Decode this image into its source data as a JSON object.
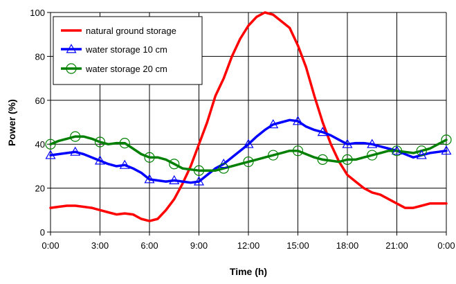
{
  "chart_data": {
    "type": "line",
    "title": "",
    "xlabel": "Time (h)",
    "ylabel": "Power (%)",
    "xlim": [
      0,
      24
    ],
    "ylim": [
      0,
      100
    ],
    "grid": true,
    "legend_position": "top-left",
    "x_tick_values": [
      0,
      3,
      6,
      9,
      12,
      15,
      18,
      21,
      24
    ],
    "x_tick_labels": [
      "0:00",
      "3:00",
      "6:00",
      "9:00",
      "12:00",
      "15:00",
      "18:00",
      "21:00",
      "0:00"
    ],
    "y_tick_values": [
      0,
      20,
      40,
      60,
      80,
      100
    ],
    "y_tick_labels": [
      "0",
      "20",
      "40",
      "60",
      "80",
      "100"
    ],
    "series": [
      {
        "name": "natural ground storage",
        "color": "#ff0000",
        "marker": "none",
        "x": [
          0,
          0.5,
          1,
          1.5,
          2,
          2.5,
          3,
          3.5,
          4,
          4.5,
          5,
          5.5,
          6,
          6.5,
          7,
          7.5,
          8,
          8.5,
          9,
          9.5,
          10,
          10.5,
          11,
          11.5,
          12,
          12.5,
          13,
          13.5,
          14,
          14.5,
          15,
          15.5,
          16,
          16.5,
          17,
          17.5,
          18,
          18.5,
          19,
          19.5,
          20,
          20.5,
          21,
          21.5,
          22,
          22.5,
          23,
          23.5,
          24
        ],
        "y": [
          11,
          11.5,
          12,
          12,
          11.5,
          11,
          10,
          9,
          8,
          8.5,
          8,
          6,
          5,
          6,
          10,
          15,
          22,
          30,
          40,
          50,
          62,
          70,
          80,
          88,
          94,
          98,
          100,
          99,
          96,
          93,
          85,
          75,
          62,
          50,
          40,
          32,
          26,
          23,
          20,
          18,
          17,
          15,
          13,
          11,
          11,
          12,
          13,
          13,
          13
        ]
      },
      {
        "name": "water storage 10 cm",
        "color": "#0000ff",
        "marker": "triangle",
        "x": [
          0,
          0.5,
          1,
          1.5,
          2,
          2.5,
          3,
          3.5,
          4,
          4.5,
          5,
          5.5,
          6,
          6.5,
          7,
          7.5,
          8,
          8.5,
          9,
          9.5,
          10,
          10.5,
          11,
          11.5,
          12,
          12.5,
          13,
          13.5,
          14,
          14.5,
          15,
          15.5,
          16,
          16.5,
          17,
          17.5,
          18,
          18.5,
          19,
          19.5,
          20,
          20.5,
          21,
          21.5,
          22,
          22.5,
          23,
          23.5,
          24
        ],
        "y": [
          35,
          35.5,
          36,
          36.5,
          35.5,
          34,
          32.5,
          31,
          30,
          30.5,
          29,
          27,
          24,
          23.5,
          23,
          23.5,
          23,
          22.5,
          23,
          26,
          29,
          31,
          34,
          37,
          40,
          43.5,
          46.5,
          49,
          50,
          51,
          50.5,
          48,
          46.5,
          45.5,
          44,
          42,
          40,
          40.5,
          40.5,
          40,
          39,
          38,
          37,
          35.5,
          34,
          35,
          36,
          36.5,
          37
        ]
      },
      {
        "name": "water storage 20 cm",
        "color": "#008000",
        "marker": "circle",
        "x": [
          0,
          0.5,
          1,
          1.5,
          2,
          2.5,
          3,
          3.5,
          4,
          4.5,
          5,
          5.5,
          6,
          6.5,
          7,
          7.5,
          8,
          8.5,
          9,
          9.5,
          10,
          10.5,
          11,
          11.5,
          12,
          12.5,
          13,
          13.5,
          14,
          14.5,
          15,
          15.5,
          16,
          16.5,
          17,
          17.5,
          18,
          18.5,
          19,
          19.5,
          20,
          20.5,
          21,
          21.5,
          22,
          22.5,
          23,
          23.5,
          24
        ],
        "y": [
          40,
          41.5,
          42.5,
          43.5,
          43.5,
          42.5,
          41,
          40,
          40.5,
          40.5,
          38,
          35.5,
          34,
          34,
          33,
          31,
          29,
          28.5,
          28,
          28,
          28,
          29,
          30,
          31,
          32,
          33,
          34,
          35,
          36,
          37,
          37,
          35.5,
          34,
          33,
          32.5,
          32,
          33,
          33,
          34,
          35,
          36,
          37,
          37,
          36.5,
          36,
          37,
          38,
          40,
          42
        ]
      }
    ],
    "marker_x": [
      [],
      [
        0,
        1.5,
        3,
        4.5,
        6,
        7.5,
        9,
        10.5,
        12,
        13.5,
        15,
        16.5,
        18,
        19.5,
        21,
        22.5,
        24
      ],
      [
        0,
        1.5,
        3,
        4.5,
        6,
        7.5,
        9,
        10.5,
        12,
        13.5,
        15,
        16.5,
        18,
        19.5,
        21,
        22.5,
        24
      ]
    ]
  }
}
